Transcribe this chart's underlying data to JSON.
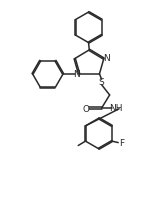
{
  "line_color": "#2a2a2a",
  "line_width": 1.1,
  "font_size": 6.5,
  "fig_width": 1.48,
  "fig_height": 2.05,
  "dpi": 100,
  "xlim": [
    0,
    10
  ],
  "ylim": [
    0,
    14
  ]
}
